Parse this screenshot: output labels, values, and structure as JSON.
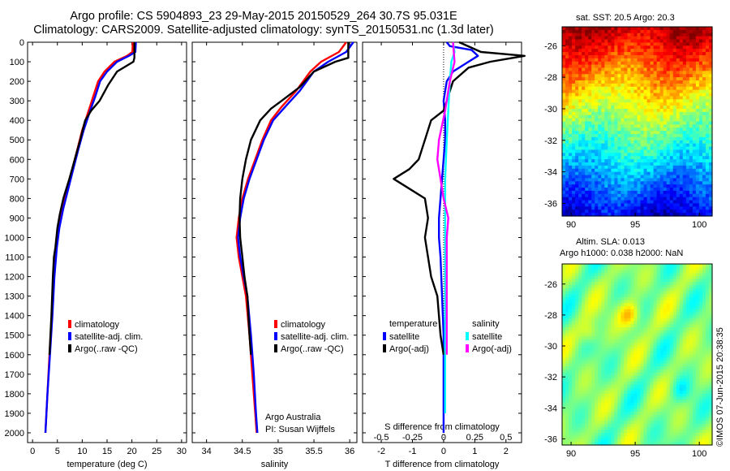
{
  "header": {
    "title_line1": "Argo profile: CS 5904893_23 29-May-2015 20150529_264 30.7S 95.031E",
    "title_line2": "Climatology: CARS2009. Satellite-adjusted climatology: synTS_20150531.nc (1.3d later)"
  },
  "colors": {
    "climatology": "#ff0000",
    "satellite_adj": "#0000ff",
    "argo": "#000000",
    "satellite_s": "#00ffff",
    "argo_s": "#ff00ff"
  },
  "chart_data": [
    {
      "id": "temperature",
      "type": "line",
      "xlabel": "temperature (deg C)",
      "xlim": [
        -1,
        31
      ],
      "xticks": [
        0,
        5,
        10,
        15,
        20,
        25,
        30
      ],
      "ylim": [
        2050,
        0
      ],
      "yticks": [
        0,
        100,
        200,
        300,
        400,
        500,
        600,
        700,
        800,
        900,
        1000,
        1100,
        1200,
        1300,
        1400,
        1500,
        1600,
        1700,
        1800,
        1900,
        2000
      ],
      "legend": [
        "climatology",
        "satellite-adj. clim.",
        "Argo(..raw -QC)"
      ],
      "series": [
        {
          "name": "climatology",
          "color": "#ff0000",
          "points": [
            [
              20.2,
              0
            ],
            [
              20.1,
              50
            ],
            [
              19.0,
              70
            ],
            [
              16.5,
              100
            ],
            [
              14.5,
              150
            ],
            [
              13.2,
              200
            ],
            [
              12.2,
              280
            ],
            [
              11.3,
              350
            ],
            [
              10.0,
              450
            ],
            [
              9.0,
              550
            ],
            [
              8.0,
              650
            ],
            [
              7.0,
              750
            ],
            [
              6.0,
              850
            ],
            [
              5.3,
              950
            ],
            [
              4.8,
              1050
            ],
            [
              4.3,
              1200
            ],
            [
              3.9,
              1400
            ],
            [
              3.4,
              1600
            ],
            [
              3.0,
              1800
            ],
            [
              2.6,
              2000
            ]
          ]
        },
        {
          "name": "satellite-adj. clim.",
          "color": "#0000ff",
          "points": [
            [
              20.8,
              0
            ],
            [
              20.7,
              50
            ],
            [
              19.4,
              70
            ],
            [
              17.0,
              100
            ],
            [
              15.0,
              150
            ],
            [
              13.6,
              200
            ],
            [
              12.6,
              280
            ],
            [
              11.6,
              350
            ],
            [
              10.3,
              450
            ],
            [
              9.2,
              550
            ],
            [
              8.2,
              650
            ],
            [
              7.2,
              750
            ],
            [
              6.2,
              850
            ],
            [
              5.4,
              950
            ],
            [
              4.9,
              1050
            ],
            [
              4.4,
              1200
            ],
            [
              4.0,
              1400
            ],
            [
              3.5,
              1600
            ],
            [
              3.0,
              1800
            ],
            [
              2.6,
              2000
            ]
          ]
        },
        {
          "name": "Argo(..raw -QC)",
          "color": "#000000",
          "points": [
            [
              20.5,
              0
            ],
            [
              20.5,
              80
            ],
            [
              20.3,
              100
            ],
            [
              17.0,
              150
            ],
            [
              15.2,
              220
            ],
            [
              13.5,
              300
            ],
            [
              11.8,
              350
            ],
            [
              10.6,
              400
            ],
            [
              9.6,
              500
            ],
            [
              8.5,
              600
            ],
            [
              7.4,
              700
            ],
            [
              6.2,
              800
            ],
            [
              5.5,
              880
            ],
            [
              5.0,
              950
            ],
            [
              4.6,
              1050
            ],
            [
              4.3,
              1100
            ],
            [
              4.1,
              1200
            ],
            [
              3.8,
              1400
            ],
            [
              3.4,
              1600
            ]
          ]
        }
      ]
    },
    {
      "id": "salinity",
      "type": "line",
      "xlabel": "salinity",
      "xlim": [
        33.8,
        36.1
      ],
      "xticks": [
        34,
        34.5,
        35,
        35.5,
        36
      ],
      "ylim": [
        2050,
        0
      ],
      "legend": [
        "climatology",
        "satellite-adj. clim.",
        "Argo(..raw -QC)"
      ],
      "annotation": [
        "Argo Australia",
        "PI: Susan Wijffels"
      ],
      "series": [
        {
          "name": "climatology",
          "color": "#ff0000",
          "points": [
            [
              35.95,
              0
            ],
            [
              35.85,
              50
            ],
            [
              35.6,
              100
            ],
            [
              35.45,
              150
            ],
            [
              35.25,
              250
            ],
            [
              35.05,
              330
            ],
            [
              34.9,
              400
            ],
            [
              34.78,
              500
            ],
            [
              34.68,
              600
            ],
            [
              34.58,
              700
            ],
            [
              34.5,
              800
            ],
            [
              34.45,
              900
            ],
            [
              34.42,
              1000
            ],
            [
              34.45,
              1100
            ],
            [
              34.5,
              1200
            ],
            [
              34.55,
              1300
            ],
            [
              34.6,
              1500
            ],
            [
              34.64,
              1700
            ],
            [
              34.68,
              1900
            ],
            [
              34.7,
              2000
            ]
          ]
        },
        {
          "name": "satellite-adj. clim.",
          "color": "#0000ff",
          "points": [
            [
              36.05,
              0
            ],
            [
              35.95,
              50
            ],
            [
              35.7,
              100
            ],
            [
              35.5,
              150
            ],
            [
              35.3,
              250
            ],
            [
              35.1,
              330
            ],
            [
              34.93,
              400
            ],
            [
              34.8,
              500
            ],
            [
              34.7,
              600
            ],
            [
              34.6,
              700
            ],
            [
              34.52,
              800
            ],
            [
              34.47,
              900
            ],
            [
              34.44,
              1000
            ],
            [
              34.47,
              1100
            ],
            [
              34.52,
              1200
            ],
            [
              34.57,
              1300
            ],
            [
              34.62,
              1500
            ],
            [
              34.66,
              1700
            ],
            [
              34.69,
              1900
            ],
            [
              34.71,
              2000
            ]
          ]
        },
        {
          "name": "Argo(..raw -QC)",
          "color": "#000000",
          "points": [
            [
              35.98,
              0
            ],
            [
              35.98,
              80
            ],
            [
              35.8,
              100
            ],
            [
              35.5,
              150
            ],
            [
              35.3,
              230
            ],
            [
              35.05,
              300
            ],
            [
              34.9,
              340
            ],
            [
              34.75,
              400
            ],
            [
              34.62,
              500
            ],
            [
              34.55,
              600
            ],
            [
              34.5,
              700
            ],
            [
              34.47,
              800
            ],
            [
              34.46,
              900
            ],
            [
              34.47,
              1000
            ],
            [
              34.5,
              1100
            ],
            [
              34.53,
              1200
            ],
            [
              34.57,
              1300
            ],
            [
              34.6,
              1500
            ],
            [
              34.62,
              1600
            ]
          ]
        }
      ]
    },
    {
      "id": "differences",
      "type": "line",
      "xlabel": "T difference from climatology",
      "xlabel_top": "S difference from climatology",
      "xlim": [
        -2.6,
        2.5
      ],
      "xticks": [
        -2,
        -1,
        0,
        1,
        2
      ],
      "xticks_top": [
        "-0.5",
        "-0.25",
        "0",
        "0.25",
        "0.5"
      ],
      "xticks_top_pos": [
        -2,
        -1,
        0,
        1,
        2
      ],
      "ylim": [
        2050,
        0
      ],
      "legend_t_title": "temperature",
      "legend_s_title": "salinity",
      "legend": [
        "satellite",
        "Argo(-adj)",
        "satellite",
        "Argo(-adj)"
      ],
      "series": [
        {
          "name": "satellite",
          "color": "#0000ff",
          "points": [
            [
              0.1,
              0
            ],
            [
              0.2,
              20
            ],
            [
              0.9,
              40
            ],
            [
              1.1,
              70
            ],
            [
              0.8,
              100
            ],
            [
              0.3,
              150
            ],
            [
              0.1,
              200
            ],
            [
              0,
              300
            ],
            [
              0.05,
              400
            ],
            [
              0.05,
              500
            ],
            [
              0,
              600
            ],
            [
              -0.05,
              700
            ],
            [
              -0.1,
              800
            ],
            [
              -0.15,
              900
            ],
            [
              -0.15,
              1000
            ],
            [
              -0.1,
              1100
            ],
            [
              -0.05,
              1300
            ],
            [
              0,
              1500
            ],
            [
              0,
              1700
            ],
            [
              0,
              1900
            ],
            [
              0,
              2000
            ]
          ]
        },
        {
          "name": "Argo(-adj)",
          "color": "#000000",
          "points": [
            [
              0.5,
              0
            ],
            [
              1.2,
              50
            ],
            [
              2.6,
              70
            ],
            [
              1.5,
              100
            ],
            [
              0.8,
              130
            ],
            [
              0.3,
              200
            ],
            [
              0,
              350
            ],
            [
              -0.4,
              400
            ],
            [
              -0.6,
              500
            ],
            [
              -0.8,
              600
            ],
            [
              -1.1,
              650
            ],
            [
              -1.6,
              700
            ],
            [
              -0.6,
              800
            ],
            [
              -0.5,
              900
            ],
            [
              -0.6,
              1000
            ],
            [
              -0.4,
              1200
            ],
            [
              -0.2,
              1300
            ],
            [
              -0.1,
              1500
            ],
            [
              0,
              1600
            ]
          ]
        },
        {
          "name": "satellite S",
          "color": "#00ffff",
          "points": [
            [
              0.3,
              0
            ],
            [
              0.35,
              50
            ],
            [
              0.25,
              100
            ],
            [
              0.2,
              200
            ],
            [
              0.15,
              350
            ],
            [
              0.1,
              500
            ],
            [
              0.05,
              700
            ],
            [
              0.05,
              900
            ],
            [
              0.05,
              1100
            ],
            [
              0.05,
              1300
            ],
            [
              0.05,
              1500
            ],
            [
              0.05,
              1700
            ],
            [
              0.05,
              1900
            ]
          ]
        },
        {
          "name": "Argo(-adj) S",
          "color": "#ff00ff",
          "points": [
            [
              0.3,
              0
            ],
            [
              0.35,
              100
            ],
            [
              0.2,
              200
            ],
            [
              0.05,
              350
            ],
            [
              -0.15,
              500
            ],
            [
              -0.2,
              600
            ],
            [
              -0.1,
              700
            ],
            [
              0.0,
              800
            ],
            [
              0.15,
              900
            ],
            [
              0.1,
              1000
            ],
            [
              0.1,
              1200
            ],
            [
              0.1,
              1400
            ],
            [
              0.1,
              1600
            ]
          ]
        }
      ]
    },
    {
      "id": "sst_map",
      "type": "heatmap",
      "title": "sat. SST: 20.5  Argo: 20.3",
      "xticks": [
        90,
        95,
        100
      ],
      "yticks": [
        -26,
        -28,
        -30,
        -32,
        -34,
        -36
      ]
    },
    {
      "id": "sla_map",
      "type": "heatmap",
      "title_line1": "Altim. SLA: 0.013",
      "title_line2": "Argo h1000: 0.038 h2000: NaN",
      "xticks": [
        90,
        95,
        100
      ],
      "yticks": [
        -26,
        -28,
        -30,
        -32,
        -34,
        -36
      ]
    }
  ],
  "footer": {
    "credit": "©IMOS 07-Jun-2015 20:38:35"
  }
}
